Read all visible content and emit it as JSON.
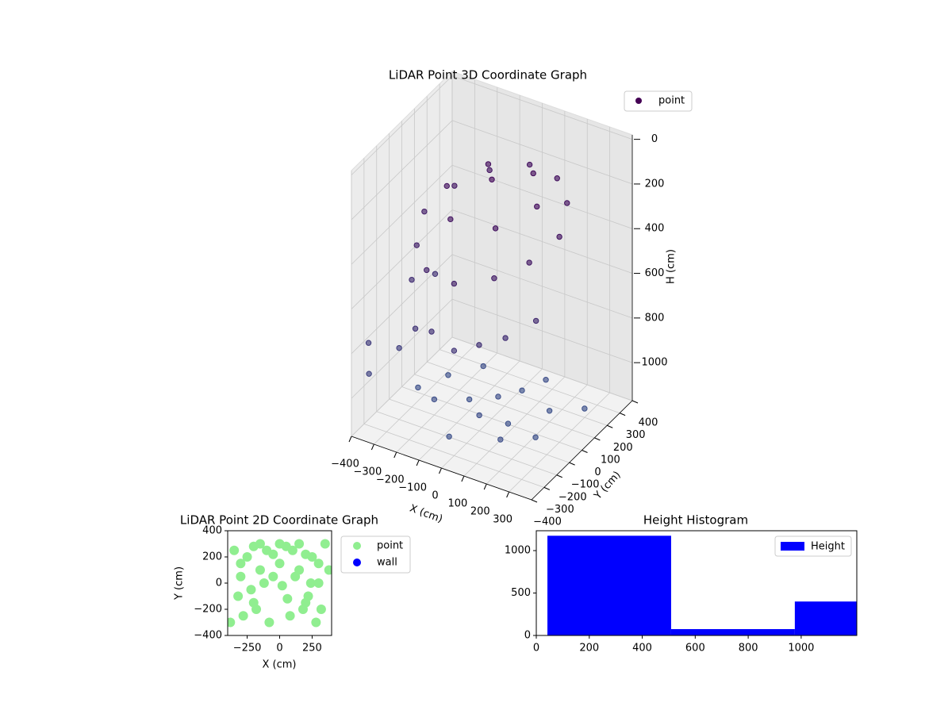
{
  "chart_data": [
    {
      "type": "scatter3d",
      "title": "LiDAR Point 3D Coordinate Graph",
      "xlabel": "X (cm)",
      "ylabel": "Y (cm)",
      "zlabel": "H (cm)",
      "xlim": [
        -400,
        400
      ],
      "ylim": [
        -400,
        400
      ],
      "zlim": [
        1170,
        -20
      ],
      "xticks": [
        {
          "value": -400,
          "label": "−400"
        },
        {
          "value": -300,
          "label": "−300"
        },
        {
          "value": -200,
          "label": "−200"
        },
        {
          "value": -100,
          "label": "−100"
        },
        0,
        100,
        200,
        300
      ],
      "yticks": [
        {
          "value": -400,
          "label": "−400"
        },
        {
          "value": -300,
          "label": "−300"
        },
        {
          "value": -200,
          "label": "−200"
        },
        {
          "value": -100,
          "label": "−100"
        },
        0,
        100,
        200,
        300,
        400
      ],
      "zticks": [
        0,
        200,
        400,
        600,
        800,
        1000
      ],
      "colormap": [
        "#3b528b",
        "#440154"
      ],
      "grid": true,
      "legend": "upper right",
      "series": [
        {
          "name": "point",
          "color": "#440154",
          "x": [
            -300,
            -250,
            -150,
            0,
            150,
            250,
            300,
            250,
            150,
            0,
            -150,
            -250,
            -200,
            -100,
            100,
            200,
            100,
            -100,
            0,
            -300,
            -280,
            -200,
            -100,
            0,
            100,
            200,
            280,
            -380,
            -350,
            -300,
            -200,
            -100,
            0,
            100,
            50,
            -150,
            200,
            150,
            -50,
            250,
            -250,
            0,
            300,
            -300,
            100
          ],
          "y": [
            0,
            150,
            250,
            300,
            250,
            150,
            0,
            -150,
            -250,
            -300,
            -250,
            -150,
            0,
            150,
            150,
            0,
            -150,
            -150,
            0,
            -100,
            50,
            -250,
            -300,
            -300,
            -280,
            -250,
            -150,
            -300,
            -350,
            -200,
            -100,
            0,
            50,
            -50,
            150,
            200,
            100,
            -200,
            -250,
            -100,
            100,
            -100,
            200,
            -50,
            250
          ],
          "z": [
            350,
            300,
            250,
            200,
            180,
            200,
            250,
            300,
            350,
            400,
            420,
            400,
            200,
            150,
            120,
            150,
            200,
            230,
            100,
            600,
            650,
            700,
            650,
            700,
            650,
            600,
            550,
            800,
            900,
            850,
            1100,
            1120,
            1100,
            1130,
            1110,
            1100,
            1120,
            1100,
            1130,
            1110,
            1120,
            1100,
            1130,
            1110,
            1100
          ]
        }
      ]
    },
    {
      "type": "scatter",
      "title": "LiDAR Point 2D Coordinate Graph",
      "xlabel": "X (cm)",
      "ylabel": "Y (cm)",
      "xlim": [
        -400,
        400
      ],
      "ylim": [
        -400,
        400
      ],
      "xticks": [
        {
          "value": -250,
          "label": "−250"
        },
        0,
        250
      ],
      "yticks": [
        {
          "value": -400,
          "label": "−400"
        },
        {
          "value": -200,
          "label": "−200"
        },
        0,
        200,
        400
      ],
      "legend": "outside right",
      "series": [
        {
          "name": "point",
          "color": "#90ee90",
          "x": [
            -350,
            -300,
            -250,
            -200,
            -150,
            -100,
            -50,
            0,
            50,
            100,
            150,
            200,
            250,
            300,
            350,
            -320,
            -220,
            -120,
            20,
            120,
            220,
            320,
            -280,
            -180,
            -80,
            80,
            180,
            280,
            -300,
            -150,
            0,
            150,
            300,
            -200,
            200,
            -380,
            380,
            -50,
            60,
            240
          ],
          "y": [
            250,
            150,
            200,
            280,
            300,
            250,
            220,
            300,
            280,
            250,
            300,
            220,
            200,
            150,
            300,
            -100,
            -50,
            0,
            -20,
            50,
            -100,
            -200,
            -250,
            -200,
            -300,
            -250,
            -200,
            -300,
            50,
            100,
            150,
            100,
            0,
            -150,
            -150,
            -300,
            100,
            50,
            -120,
            0
          ]
        },
        {
          "name": "wall",
          "color": "#0000ff",
          "x": [],
          "y": []
        }
      ]
    },
    {
      "type": "histogram",
      "title": "Height Histogram",
      "bins": [
        42,
        509,
        976,
        1443
      ],
      "counts": [
        1175,
        75,
        400
      ],
      "xlim": [
        0,
        1210
      ],
      "ylim": [
        0,
        1234
      ],
      "xticks": [
        0,
        200,
        400,
        600,
        800,
        1000
      ],
      "yticks": [
        0,
        500,
        1000
      ],
      "legend": "upper right",
      "series_name": "Height",
      "color": "#0000ff"
    }
  ]
}
